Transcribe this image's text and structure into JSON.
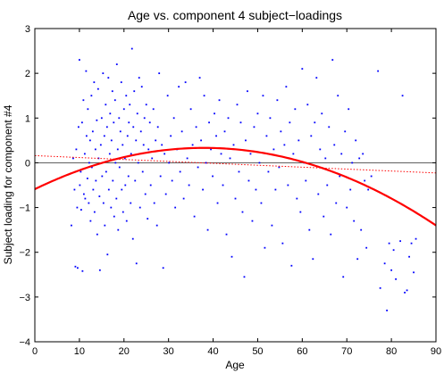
{
  "chart_data": {
    "type": "scatter",
    "title": "Age vs. component 4 subject−loadings",
    "xlabel": "Age",
    "ylabel": "Subject loading for component #4",
    "xlim": [
      0,
      90
    ],
    "ylim": [
      -4,
      3
    ],
    "xticks": [
      0,
      10,
      20,
      30,
      40,
      50,
      60,
      70,
      80,
      90
    ],
    "yticks": [
      -4,
      -3,
      -2,
      -1,
      0,
      1,
      2,
      3
    ],
    "grid": false,
    "legend": "none",
    "colors": {
      "points": "#0000ff",
      "quadratic_fit": "#ff0000",
      "linear_fit": "#ff0000",
      "zero_line": "#000000"
    },
    "reference_line": {
      "y": 0
    },
    "quadratic_fit": {
      "a": -0.00064,
      "b": 0.0486,
      "c": -0.59
    },
    "linear_fit": {
      "slope": -0.0043,
      "intercept": 0.16
    },
    "points": [
      [
        8.2,
        -1.4
      ],
      [
        8.6,
        0.1
      ],
      [
        8.9,
        -0.6
      ],
      [
        9.1,
        -2.32
      ],
      [
        9.3,
        0.3
      ],
      [
        9.5,
        -1.0
      ],
      [
        9.6,
        -2.35
      ],
      [
        9.8,
        0.8
      ],
      [
        10.0,
        2.3
      ],
      [
        10.1,
        -0.5
      ],
      [
        10.3,
        -0.2
      ],
      [
        10.4,
        -1.05
      ],
      [
        10.6,
        0.9
      ],
      [
        10.7,
        -2.42
      ],
      [
        10.9,
        1.4
      ],
      [
        11.0,
        -0.7
      ],
      [
        11.2,
        0.2
      ],
      [
        11.3,
        -0.8
      ],
      [
        11.5,
        2.05
      ],
      [
        11.6,
        0.6
      ],
      [
        11.8,
        -0.35
      ],
      [
        11.9,
        1.2
      ],
      [
        12.1,
        -0.9
      ],
      [
        12.2,
        0.0
      ],
      [
        12.4,
        0.5
      ],
      [
        12.5,
        -1.3
      ],
      [
        12.7,
        1.5
      ],
      [
        12.8,
        -0.1
      ],
      [
        13.0,
        0.7
      ],
      [
        13.1,
        -0.6
      ],
      [
        13.3,
        1.8
      ],
      [
        13.4,
        -1.1
      ],
      [
        13.6,
        0.3
      ],
      [
        13.7,
        -0.4
      ],
      [
        13.9,
        0.95
      ],
      [
        14.0,
        -1.6
      ],
      [
        14.2,
        1.65
      ],
      [
        14.3,
        0.1
      ],
      [
        14.5,
        -0.75
      ],
      [
        14.6,
        -2.4
      ],
      [
        14.8,
        0.4
      ],
      [
        15.0,
        1.0
      ],
      [
        15.1,
        -0.3
      ],
      [
        15.3,
        2.0
      ],
      [
        15.4,
        -0.9
      ],
      [
        15.6,
        0.6
      ],
      [
        15.7,
        -1.4
      ],
      [
        15.9,
        1.3
      ],
      [
        16.0,
        -0.2
      ],
      [
        16.2,
        0.8
      ],
      [
        16.3,
        -2.05
      ],
      [
        16.5,
        1.9
      ],
      [
        16.6,
        -0.6
      ],
      [
        16.8,
        0.2
      ],
      [
        16.9,
        1.1
      ],
      [
        17.1,
        -1.0
      ],
      [
        17.2,
        0.5
      ],
      [
        17.4,
        1.6
      ],
      [
        17.5,
        -0.4
      ],
      [
        17.7,
        0.9
      ],
      [
        17.8,
        -1.2
      ],
      [
        18.0,
        1.4
      ],
      [
        18.1,
        0.0
      ],
      [
        18.3,
        -0.8
      ],
      [
        18.4,
        2.2
      ],
      [
        18.6,
        0.3
      ],
      [
        18.7,
        -1.5
      ],
      [
        18.9,
        1.0
      ],
      [
        19.0,
        -0.1
      ],
      [
        19.2,
        0.7
      ],
      [
        19.4,
        1.8
      ],
      [
        19.5,
        -0.6
      ],
      [
        19.7,
        0.4
      ],
      [
        19.8,
        -1.1
      ],
      [
        20.0,
        1.2
      ],
      [
        20.2,
        0.1
      ],
      [
        20.3,
        -0.5
      ],
      [
        20.5,
        1.5
      ],
      [
        20.6,
        -1.3
      ],
      [
        20.8,
        0.6
      ],
      [
        21.0,
        -0.3
      ],
      [
        21.1,
        0.9
      ],
      [
        21.3,
        1.3
      ],
      [
        21.5,
        -0.9
      ],
      [
        21.6,
        0.2
      ],
      [
        21.8,
        2.55
      ],
      [
        22.0,
        -1.7
      ],
      [
        22.1,
        0.8
      ],
      [
        22.3,
        1.6
      ],
      [
        22.5,
        -0.4
      ],
      [
        22.7,
        0.5
      ],
      [
        22.8,
        -2.25
      ],
      [
        23.0,
        1.1
      ],
      [
        23.2,
        0.0
      ],
      [
        23.4,
        1.9
      ],
      [
        23.6,
        -1.0
      ],
      [
        23.8,
        0.7
      ],
      [
        24.0,
        1.7
      ],
      [
        24.2,
        -0.2
      ],
      [
        24.4,
        0.4
      ],
      [
        24.6,
        1.0
      ],
      [
        24.8,
        -0.7
      ],
      [
        25.0,
        1.3
      ],
      [
        25.3,
        -1.25
      ],
      [
        25.5,
        0.3
      ],
      [
        25.8,
        0.9
      ],
      [
        26.0,
        -0.5
      ],
      [
        26.3,
        0.1
      ],
      [
        26.6,
        1.2
      ],
      [
        26.8,
        -0.9
      ],
      [
        27.1,
        0.5
      ],
      [
        27.4,
        -1.4
      ],
      [
        27.6,
        0.8
      ],
      [
        27.9,
        2.0
      ],
      [
        28.2,
        -0.3
      ],
      [
        28.5,
        0.4
      ],
      [
        28.8,
        -2.35
      ],
      [
        29.1,
        0.2
      ],
      [
        29.4,
        -0.7
      ],
      [
        29.8,
        1.5
      ],
      [
        30.1,
        0.0
      ],
      [
        30.5,
        0.6
      ],
      [
        30.8,
        -0.4
      ],
      [
        31.2,
        1.0
      ],
      [
        31.5,
        -1.0
      ],
      [
        31.9,
        0.3
      ],
      [
        32.3,
        1.7
      ],
      [
        32.6,
        -0.2
      ],
      [
        33.0,
        0.7
      ],
      [
        33.4,
        -0.8
      ],
      [
        33.8,
        1.8
      ],
      [
        34.2,
        0.1
      ],
      [
        34.6,
        -0.5
      ],
      [
        35.0,
        1.2
      ],
      [
        35.4,
        0.4
      ],
      [
        35.8,
        -1.2
      ],
      [
        36.2,
        0.8
      ],
      [
        36.6,
        -0.1
      ],
      [
        37.0,
        1.9
      ],
      [
        37.3,
        0.5
      ],
      [
        37.7,
        -0.6
      ],
      [
        38.0,
        1.5
      ],
      [
        38.4,
        0.0
      ],
      [
        38.8,
        -1.5
      ],
      [
        39.1,
        0.9
      ],
      [
        39.5,
        0.3
      ],
      [
        39.9,
        -0.3
      ],
      [
        40.3,
        1.1
      ],
      [
        40.7,
        0.6
      ],
      [
        41.0,
        -0.9
      ],
      [
        41.4,
        1.4
      ],
      [
        41.8,
        0.2
      ],
      [
        42.2,
        -0.5
      ],
      [
        42.6,
        0.7
      ],
      [
        43.0,
        -1.6
      ],
      [
        43.4,
        1.0
      ],
      [
        43.8,
        0.1
      ],
      [
        44.2,
        -2.1
      ],
      [
        44.6,
        0.4
      ],
      [
        45.0,
        -0.8
      ],
      [
        45.4,
        1.3
      ],
      [
        45.8,
        -0.2
      ],
      [
        46.2,
        0.9
      ],
      [
        46.6,
        -1.1
      ],
      [
        47.0,
        -2.55
      ],
      [
        47.3,
        0.5
      ],
      [
        47.7,
        1.6
      ],
      [
        48.0,
        -0.4
      ],
      [
        48.4,
        0.2
      ],
      [
        48.8,
        -1.3
      ],
      [
        49.2,
        0.8
      ],
      [
        49.6,
        -0.6
      ],
      [
        50.0,
        1.1
      ],
      [
        50.4,
        0.0
      ],
      [
        50.8,
        -0.9
      ],
      [
        51.2,
        1.5
      ],
      [
        51.6,
        -1.9
      ],
      [
        52.0,
        0.6
      ],
      [
        52.4,
        -0.2
      ],
      [
        52.8,
        1.0
      ],
      [
        53.2,
        -1.4
      ],
      [
        53.6,
        0.3
      ],
      [
        54.0,
        -0.6
      ],
      [
        54.4,
        1.4
      ],
      [
        54.8,
        -0.1
      ],
      [
        55.2,
        0.7
      ],
      [
        55.6,
        -1.8
      ],
      [
        56.0,
        0.4
      ],
      [
        56.4,
        1.7
      ],
      [
        56.8,
        -0.5
      ],
      [
        57.2,
        0.9
      ],
      [
        57.6,
        -2.3
      ],
      [
        58.0,
        0.2
      ],
      [
        58.4,
        1.2
      ],
      [
        58.8,
        -0.8
      ],
      [
        59.2,
        0.5
      ],
      [
        59.6,
        -1.1
      ],
      [
        60.0,
        2.1
      ],
      [
        60.4,
        0.0
      ],
      [
        60.8,
        -0.4
      ],
      [
        61.2,
        1.3
      ],
      [
        61.6,
        -1.5
      ],
      [
        62.0,
        0.6
      ],
      [
        62.4,
        -2.15
      ],
      [
        62.8,
        0.9
      ],
      [
        63.2,
        1.9
      ],
      [
        63.6,
        -0.7
      ],
      [
        64.0,
        0.3
      ],
      [
        64.4,
        1.1
      ],
      [
        64.8,
        -1.2
      ],
      [
        65.2,
        0.1
      ],
      [
        65.6,
        -0.5
      ],
      [
        66.0,
        0.8
      ],
      [
        66.4,
        -1.6
      ],
      [
        66.8,
        2.3
      ],
      [
        67.2,
        0.4
      ],
      [
        67.6,
        -0.9
      ],
      [
        68.0,
        1.5
      ],
      [
        68.4,
        -0.3
      ],
      [
        68.8,
        0.2
      ],
      [
        69.2,
        -2.55
      ],
      [
        69.6,
        0.7
      ],
      [
        70.0,
        -1.0
      ],
      [
        70.4,
        1.2
      ],
      [
        70.8,
        -0.6
      ],
      [
        71.2,
        0.0
      ],
      [
        71.6,
        -1.3
      ],
      [
        72.0,
        0.5
      ],
      [
        72.4,
        -2.15
      ],
      [
        72.8,
        0.1
      ],
      [
        73.2,
        -1.5
      ],
      [
        73.6,
        0.2
      ],
      [
        74.0,
        -0.4
      ],
      [
        74.4,
        -1.9
      ],
      [
        74.8,
        -0.6
      ],
      [
        75.5,
        -0.3
      ],
      [
        77.0,
        2.05
      ],
      [
        77.5,
        -2.8
      ],
      [
        78.5,
        -2.25
      ],
      [
        79.0,
        -3.3
      ],
      [
        79.5,
        -1.8
      ],
      [
        80.0,
        -2.4
      ],
      [
        80.5,
        -1.95
      ],
      [
        81.0,
        -2.6
      ],
      [
        82.0,
        -1.75
      ],
      [
        82.5,
        1.5
      ],
      [
        83.0,
        -2.9
      ],
      [
        83.5,
        -2.85
      ],
      [
        84.0,
        -2.1
      ],
      [
        84.5,
        -1.8
      ],
      [
        85.0,
        -2.45
      ],
      [
        85.5,
        -1.7
      ]
    ]
  }
}
